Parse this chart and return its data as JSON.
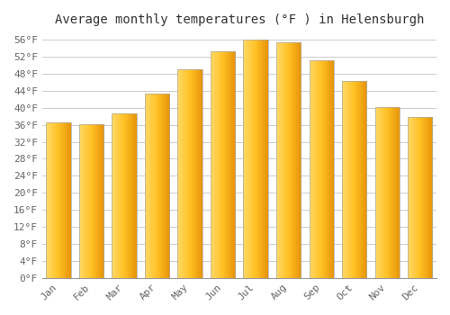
{
  "title": "Average monthly temperatures (°F ) in Helensburgh",
  "months": [
    "Jan",
    "Feb",
    "Mar",
    "Apr",
    "May",
    "Jun",
    "Jul",
    "Aug",
    "Sep",
    "Oct",
    "Nov",
    "Dec"
  ],
  "values": [
    36.5,
    36.1,
    38.7,
    43.3,
    49.1,
    53.2,
    56.1,
    55.4,
    51.2,
    46.3,
    40.2,
    37.9
  ],
  "bar_color_left": "#FFD966",
  "bar_color_right": "#E8950A",
  "bar_color_mid": "#FFC125",
  "background_color": "#FFFFFF",
  "grid_color": "#CCCCCC",
  "ytick_min": 0,
  "ytick_max": 56,
  "ytick_step": 4,
  "title_fontsize": 10,
  "tick_fontsize": 8,
  "font_family": "monospace"
}
